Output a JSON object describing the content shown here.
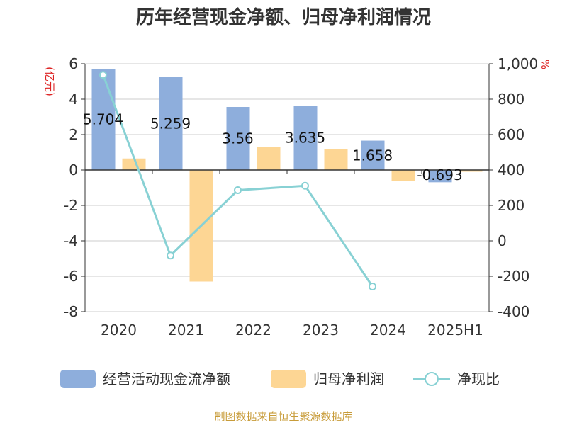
{
  "chart_data": {
    "type": "bar",
    "title": "历年经营现金净额、归母净利润情况",
    "categories": [
      "2020",
      "2021",
      "2022",
      "2023",
      "2024",
      "2025H1"
    ],
    "y_left": {
      "unit": "(亿元)",
      "ylim": [
        -8,
        6
      ],
      "ticks": [
        "6",
        "4",
        "2",
        "0",
        "-2",
        "-4",
        "-6",
        "-8"
      ],
      "tick_values": [
        6,
        4,
        2,
        0,
        -2,
        -4,
        -6,
        -8
      ]
    },
    "y_right": {
      "unit": "%",
      "ylim": [
        -400,
        1000
      ],
      "ticks": [
        "1,000",
        "800",
        "600",
        "400",
        "200",
        "0",
        "-200",
        "-400"
      ],
      "tick_values": [
        1000,
        800,
        600,
        400,
        200,
        0,
        -200,
        -400
      ]
    },
    "series": [
      {
        "name": "经营活动现金流净额",
        "kind": "bar",
        "axis": "left",
        "color": "#8eaedc",
        "values": [
          5.704,
          5.259,
          3.56,
          3.635,
          1.658,
          -0.693
        ],
        "labels": [
          "5.704",
          "5.259",
          "3.56",
          "3.635",
          "1.658",
          "-0.693"
        ]
      },
      {
        "name": "归母净利润",
        "kind": "bar",
        "axis": "left",
        "color": "#fdd694",
        "values": [
          0.65,
          -6.3,
          1.28,
          1.2,
          -0.6,
          -0.1
        ]
      },
      {
        "name": "净现比",
        "kind": "line",
        "axis": "right",
        "color": "#88d1d4",
        "values": [
          937,
          -83,
          286,
          311,
          -258,
          null
        ]
      }
    ],
    "grid": true,
    "legend_position": "bottom"
  },
  "source": "制图数据来自恒生聚源数据库",
  "colors": {
    "axis": "#333333",
    "grid": "#cccccc",
    "unit": "#dd2222",
    "source": "#c89c3a"
  }
}
